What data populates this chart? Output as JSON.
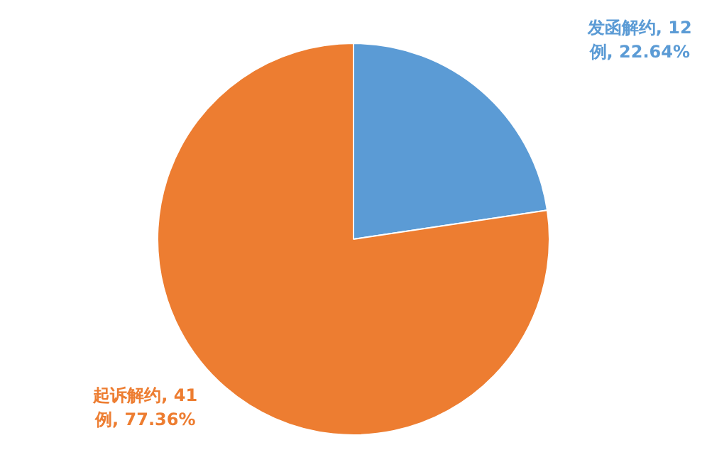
{
  "chart_data": {
    "type": "pie",
    "categories": [
      "发函解约",
      "起诉解约"
    ],
    "values": [
      12,
      41
    ],
    "colors": [
      "#5b9bd5",
      "#ed7d31"
    ],
    "value_labels": [
      "12例, 22.64%",
      "41例, 77.36%"
    ]
  }
}
